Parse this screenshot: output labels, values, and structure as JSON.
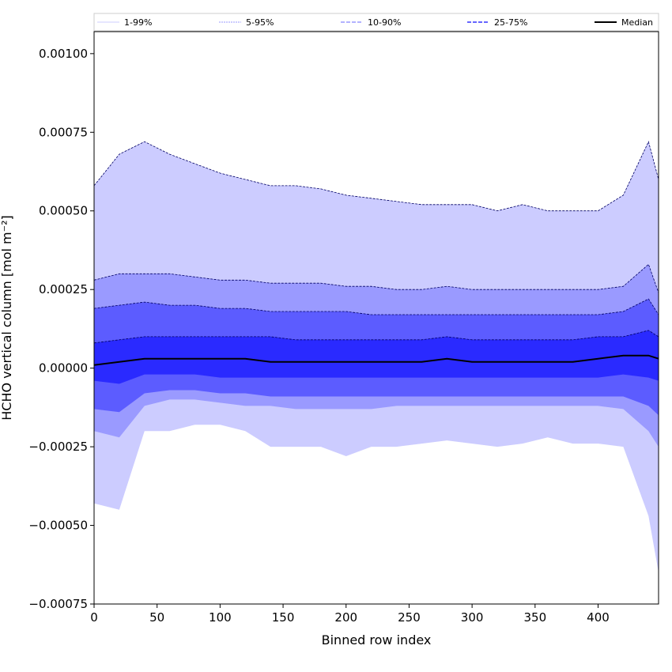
{
  "chart_data": {
    "type": "area",
    "xlabel": "Binned row index",
    "ylabel": "HCHO vertical column [mol m⁻²]",
    "xlim": [
      0,
      448
    ],
    "ylim": [
      -0.00075,
      0.00107
    ],
    "x_ticks": [
      0,
      50,
      100,
      150,
      200,
      250,
      300,
      350,
      400
    ],
    "x_tick_labels": [
      "0",
      "50",
      "100",
      "150",
      "200",
      "250",
      "300",
      "350",
      "400"
    ],
    "y_ticks": [
      -0.00075,
      -0.0005,
      -0.00025,
      0,
      0.00025,
      0.0005,
      0.00075,
      0.001
    ],
    "y_tick_labels": [
      "−0.00075",
      "−0.00050",
      "−0.00025",
      "0.00000",
      "0.00025",
      "0.00050",
      "0.00075",
      "0.00100"
    ],
    "grid": false,
    "legend_position": "top",
    "legend": [
      {
        "label": "1-99%",
        "color": "#ccccff"
      },
      {
        "label": "5-95%",
        "color": "#9999ff"
      },
      {
        "label": "10-90%",
        "color": "#6666ff"
      },
      {
        "label": "25-75%",
        "color": "#3333ff"
      },
      {
        "label": "Median",
        "color": "#000000"
      }
    ],
    "band_colors": [
      "#ccccff",
      "#9a9aff",
      "#5c5cff",
      "#2a2aff"
    ],
    "x": [
      0,
      20,
      40,
      60,
      80,
      100,
      120,
      140,
      160,
      180,
      200,
      220,
      240,
      260,
      280,
      300,
      320,
      340,
      360,
      380,
      400,
      420,
      440,
      448
    ],
    "series": [
      {
        "name": "1-99%",
        "role": "band",
        "lower": [
          -0.00043,
          -0.00045,
          -0.0002,
          -0.0002,
          -0.00018,
          -0.00018,
          -0.0002,
          -0.00025,
          -0.00025,
          -0.00025,
          -0.00028,
          -0.00025,
          -0.00025,
          -0.00024,
          -0.00023,
          -0.00024,
          -0.00025,
          -0.00024,
          -0.00022,
          -0.00024,
          -0.00024,
          -0.00025,
          -0.00047,
          -0.00065
        ],
        "upper": [
          0.00058,
          0.00068,
          0.00072,
          0.00068,
          0.00065,
          0.00062,
          0.0006,
          0.00058,
          0.00058,
          0.00057,
          0.00055,
          0.00054,
          0.00053,
          0.00052,
          0.00052,
          0.00052,
          0.0005,
          0.00052,
          0.0005,
          0.0005,
          0.0005,
          0.00055,
          0.00072,
          0.0006
        ]
      },
      {
        "name": "5-95%",
        "role": "band",
        "lower": [
          -0.0002,
          -0.00022,
          -0.00012,
          -0.0001,
          -0.0001,
          -0.00011,
          -0.00012,
          -0.00012,
          -0.00013,
          -0.00013,
          -0.00013,
          -0.00013,
          -0.00012,
          -0.00012,
          -0.00012,
          -0.00012,
          -0.00012,
          -0.00012,
          -0.00012,
          -0.00012,
          -0.00012,
          -0.00013,
          -0.0002,
          -0.00025
        ],
        "upper": [
          0.00028,
          0.0003,
          0.0003,
          0.0003,
          0.00029,
          0.00028,
          0.00028,
          0.00027,
          0.00027,
          0.00027,
          0.00026,
          0.00026,
          0.00025,
          0.00025,
          0.00026,
          0.00025,
          0.00025,
          0.00025,
          0.00025,
          0.00025,
          0.00025,
          0.00026,
          0.00033,
          0.00024
        ]
      },
      {
        "name": "10-90%",
        "role": "band",
        "lower": [
          -0.00013,
          -0.00014,
          -8e-05,
          -7e-05,
          -7e-05,
          -8e-05,
          -8e-05,
          -9e-05,
          -9e-05,
          -9e-05,
          -9e-05,
          -9e-05,
          -9e-05,
          -9e-05,
          -9e-05,
          -9e-05,
          -9e-05,
          -9e-05,
          -9e-05,
          -9e-05,
          -9e-05,
          -9e-05,
          -0.00012,
          -0.00015
        ],
        "upper": [
          0.00019,
          0.0002,
          0.00021,
          0.0002,
          0.0002,
          0.00019,
          0.00019,
          0.00018,
          0.00018,
          0.00018,
          0.00018,
          0.00017,
          0.00017,
          0.00017,
          0.00017,
          0.00017,
          0.00017,
          0.00017,
          0.00017,
          0.00017,
          0.00017,
          0.00018,
          0.00022,
          0.00017
        ]
      },
      {
        "name": "25-75%",
        "role": "band",
        "lower": [
          -4e-05,
          -5e-05,
          -2e-05,
          -2e-05,
          -2e-05,
          -3e-05,
          -3e-05,
          -3e-05,
          -3e-05,
          -3e-05,
          -3e-05,
          -3e-05,
          -3e-05,
          -3e-05,
          -3e-05,
          -3e-05,
          -3e-05,
          -3e-05,
          -3e-05,
          -3e-05,
          -3e-05,
          -2e-05,
          -3e-05,
          -4e-05
        ],
        "upper": [
          8e-05,
          9e-05,
          0.0001,
          0.0001,
          0.0001,
          0.0001,
          0.0001,
          0.0001,
          9e-05,
          9e-05,
          9e-05,
          9e-05,
          9e-05,
          9e-05,
          0.0001,
          9e-05,
          9e-05,
          9e-05,
          9e-05,
          9e-05,
          0.0001,
          0.0001,
          0.00012,
          0.0001
        ]
      },
      {
        "name": "Median",
        "role": "line",
        "values": [
          1e-05,
          2e-05,
          3e-05,
          3e-05,
          3e-05,
          3e-05,
          3e-05,
          2e-05,
          2e-05,
          2e-05,
          2e-05,
          2e-05,
          2e-05,
          2e-05,
          3e-05,
          2e-05,
          2e-05,
          2e-05,
          2e-05,
          2e-05,
          3e-05,
          4e-05,
          4e-05,
          3e-05
        ]
      }
    ]
  }
}
